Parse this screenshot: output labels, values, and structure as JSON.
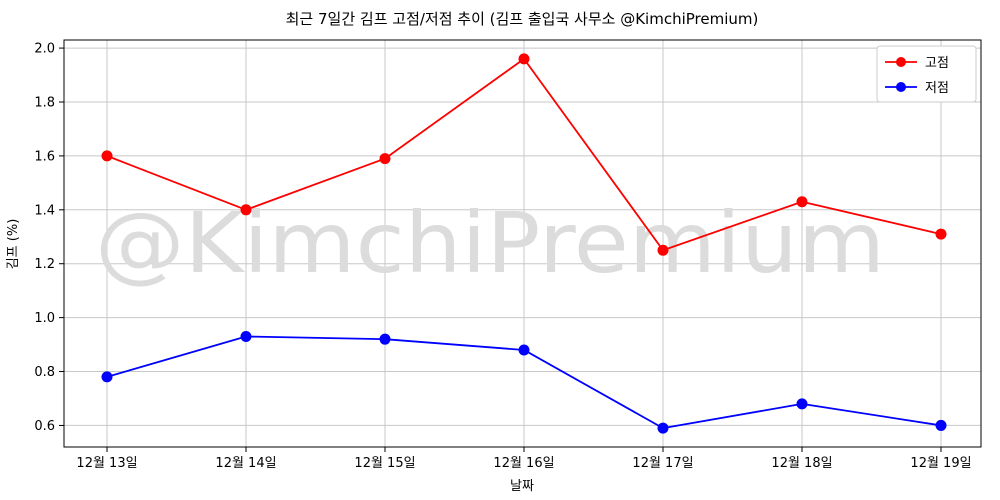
{
  "watermark": "@KimchiPremium",
  "chart_data": {
    "type": "line",
    "title": "최근 7일간 김프 고점/저점 추이 (김프 출입국 사무소 @KimchiPremium)",
    "xlabel": "날짜",
    "ylabel": "김프 (%)",
    "categories": [
      "12월 13일",
      "12월 14일",
      "12월 15일",
      "12월 16일",
      "12월 17일",
      "12월 18일",
      "12월 19일"
    ],
    "series": [
      {
        "name": "고점",
        "color": "#ff0000",
        "marker": "circle",
        "values": [
          1.6,
          1.4,
          1.59,
          1.96,
          1.25,
          1.43,
          1.31
        ]
      },
      {
        "name": "저점",
        "color": "#0000ff",
        "marker": "circle",
        "values": [
          0.78,
          0.93,
          0.92,
          0.88,
          0.59,
          0.68,
          0.6
        ]
      }
    ],
    "yticks": [
      0.6,
      0.8,
      1.0,
      1.2,
      1.4,
      1.6,
      1.8,
      2.0
    ],
    "ylim": [
      0.52,
      2.03
    ],
    "grid": true,
    "legend_position": "upper right",
    "colors": {
      "grid": "#c8c8c8",
      "spine": "#000000",
      "watermark": "#dcdcdc",
      "legend_border": "#cccccc",
      "text": "#000000"
    }
  }
}
